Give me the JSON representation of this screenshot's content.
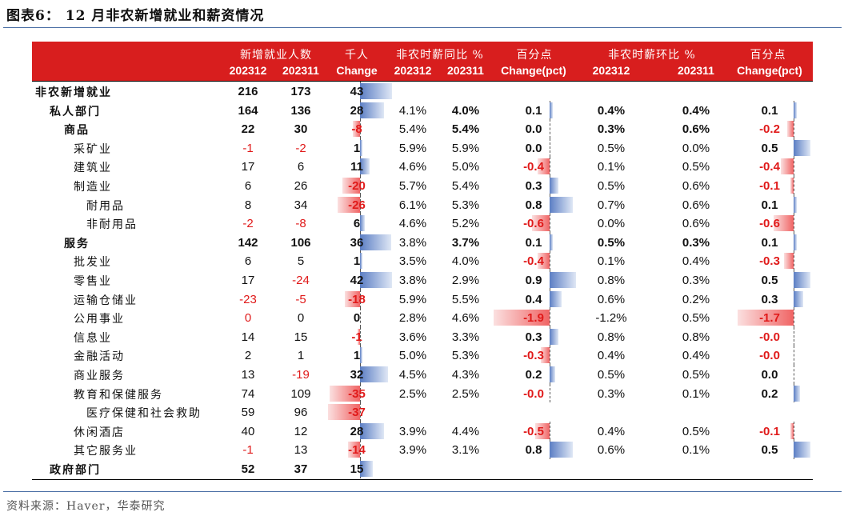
{
  "title": "图表6：  12 月非农新增就业和薪资情况",
  "source": "资料来源：Haver，华泰研究",
  "header": {
    "groups": [
      "新增就业人数",
      "千人",
      "非农时薪同比 %",
      "百分点",
      "非农时薪环比 %",
      "百分点"
    ],
    "cols": [
      "202312",
      "202311",
      "Change",
      "202312",
      "202311",
      "Change(pct)",
      "202312",
      "202311",
      "Change(pct)"
    ]
  },
  "rows": [
    {
      "label": "非农新增就业",
      "indent": 0,
      "bold": true,
      "e1": "216",
      "e2": "173",
      "ec": "43",
      "y1": "",
      "y2": "",
      "yc": "",
      "m1": "",
      "m2": "",
      "mc": ""
    },
    {
      "label": "私人部门",
      "indent": 1,
      "bold": true,
      "e1": "164",
      "e2": "136",
      "ec": "28",
      "y1": "4.1%",
      "y2": "4.0%",
      "yc": "0.1",
      "m1": "0.4%",
      "m2": "0.4%",
      "mc": "0.1"
    },
    {
      "label": "商品",
      "indent": 2,
      "bold": true,
      "e1": "22",
      "e2": "30",
      "ec": "-8",
      "y1": "5.4%",
      "y2": "5.4%",
      "yc": "0.0",
      "m1": "0.3%",
      "m2": "0.6%",
      "mc": "-0.2"
    },
    {
      "label": "采矿业",
      "indent": 3,
      "bold": false,
      "e1": "-1",
      "e2": "-2",
      "ec": "1",
      "y1": "5.9%",
      "y2": "5.9%",
      "yc": "0.0",
      "m1": "0.5%",
      "m2": "0.0%",
      "mc": "0.5"
    },
    {
      "label": "建筑业",
      "indent": 3,
      "bold": false,
      "e1": "17",
      "e2": "6",
      "ec": "11",
      "y1": "4.6%",
      "y2": "5.0%",
      "yc": "-0.4",
      "m1": "0.1%",
      "m2": "0.5%",
      "mc": "-0.4"
    },
    {
      "label": "制造业",
      "indent": 3,
      "bold": false,
      "e1": "6",
      "e2": "26",
      "ec": "-20",
      "y1": "5.7%",
      "y2": "5.4%",
      "yc": "0.3",
      "m1": "0.5%",
      "m2": "0.6%",
      "mc": "-0.1"
    },
    {
      "label": "耐用品",
      "indent": 4,
      "bold": false,
      "e1": "8",
      "e2": "34",
      "ec": "-26",
      "y1": "6.1%",
      "y2": "5.3%",
      "yc": "0.8",
      "m1": "0.7%",
      "m2": "0.6%",
      "mc": "0.1"
    },
    {
      "label": "非耐用品",
      "indent": 4,
      "bold": false,
      "e1": "-2",
      "e2": "-8",
      "ec": "6",
      "y1": "4.6%",
      "y2": "5.2%",
      "yc": "-0.6",
      "m1": "0.0%",
      "m2": "0.6%",
      "mc": "-0.6"
    },
    {
      "label": "服务",
      "indent": 2,
      "bold": true,
      "e1": "142",
      "e2": "106",
      "ec": "36",
      "y1": "3.8%",
      "y2": "3.7%",
      "yc": "0.1",
      "m1": "0.5%",
      "m2": "0.3%",
      "mc": "0.1"
    },
    {
      "label": "批发业",
      "indent": 3,
      "bold": false,
      "e1": "6",
      "e2": "5",
      "ec": "1",
      "y1": "3.5%",
      "y2": "4.0%",
      "yc": "-0.4",
      "m1": "0.1%",
      "m2": "0.4%",
      "mc": "-0.3"
    },
    {
      "label": "零售业",
      "indent": 3,
      "bold": false,
      "e1": "17",
      "e2": "-24",
      "ec": "42",
      "y1": "3.8%",
      "y2": "2.9%",
      "yc": "0.9",
      "m1": "0.8%",
      "m2": "0.3%",
      "mc": "0.5"
    },
    {
      "label": "运输仓储业",
      "indent": 3,
      "bold": false,
      "e1": "-23",
      "e2": "-5",
      "ec": "-18",
      "y1": "5.9%",
      "y2": "5.5%",
      "yc": "0.4",
      "m1": "0.6%",
      "m2": "0.2%",
      "mc": "0.3"
    },
    {
      "label": "公用事业",
      "indent": 3,
      "bold": false,
      "e1": "0",
      "e2": "0",
      "ec": "0",
      "y1": "2.8%",
      "y2": "4.6%",
      "yc": "-1.9",
      "m1": "-1.2%",
      "m2": "0.5%",
      "mc": "-1.7"
    },
    {
      "label": "信息业",
      "indent": 3,
      "bold": false,
      "e1": "14",
      "e2": "15",
      "ec": "-1",
      "y1": "3.6%",
      "y2": "3.3%",
      "yc": "0.3",
      "m1": "0.8%",
      "m2": "0.8%",
      "mc": "-0.0"
    },
    {
      "label": "金融活动",
      "indent": 3,
      "bold": false,
      "e1": "2",
      "e2": "1",
      "ec": "1",
      "y1": "5.0%",
      "y2": "5.3%",
      "yc": "-0.3",
      "m1": "0.4%",
      "m2": "0.4%",
      "mc": "-0.0"
    },
    {
      "label": "商业服务",
      "indent": 3,
      "bold": false,
      "e1": "13",
      "e2": "-19",
      "ec": "32",
      "y1": "4.5%",
      "y2": "4.3%",
      "yc": "0.2",
      "m1": "0.5%",
      "m2": "0.5%",
      "mc": "0.0"
    },
    {
      "label": "教育和保健服务",
      "indent": 3,
      "bold": false,
      "e1": "74",
      "e2": "109",
      "ec": "-35",
      "y1": "2.5%",
      "y2": "2.5%",
      "yc": "-0.0",
      "m1": "0.3%",
      "m2": "0.1%",
      "mc": "0.2"
    },
    {
      "label": "医疗保健和社会救助",
      "indent": 4,
      "bold": false,
      "e1": "59",
      "e2": "96",
      "ec": "-37",
      "y1": "",
      "y2": "",
      "yc": "",
      "m1": "",
      "m2": "",
      "mc": ""
    },
    {
      "label": "休闲酒店",
      "indent": 3,
      "bold": false,
      "e1": "40",
      "e2": "12",
      "ec": "28",
      "y1": "3.9%",
      "y2": "4.4%",
      "yc": "-0.5",
      "m1": "0.4%",
      "m2": "0.5%",
      "mc": "-0.1"
    },
    {
      "label": "其它服务业",
      "indent": 3,
      "bold": false,
      "e1": "-1",
      "e2": "13",
      "ec": "-14",
      "y1": "3.9%",
      "y2": "3.1%",
      "yc": "0.8",
      "m1": "0.6%",
      "m2": "0.1%",
      "mc": "0.5"
    },
    {
      "label": "政府部门",
      "indent": 1,
      "bold": true,
      "e1": "52",
      "e2": "37",
      "ec": "15",
      "y1": "",
      "y2": "",
      "yc": "",
      "m1": "",
      "m2": "",
      "mc": ""
    }
  ]
}
